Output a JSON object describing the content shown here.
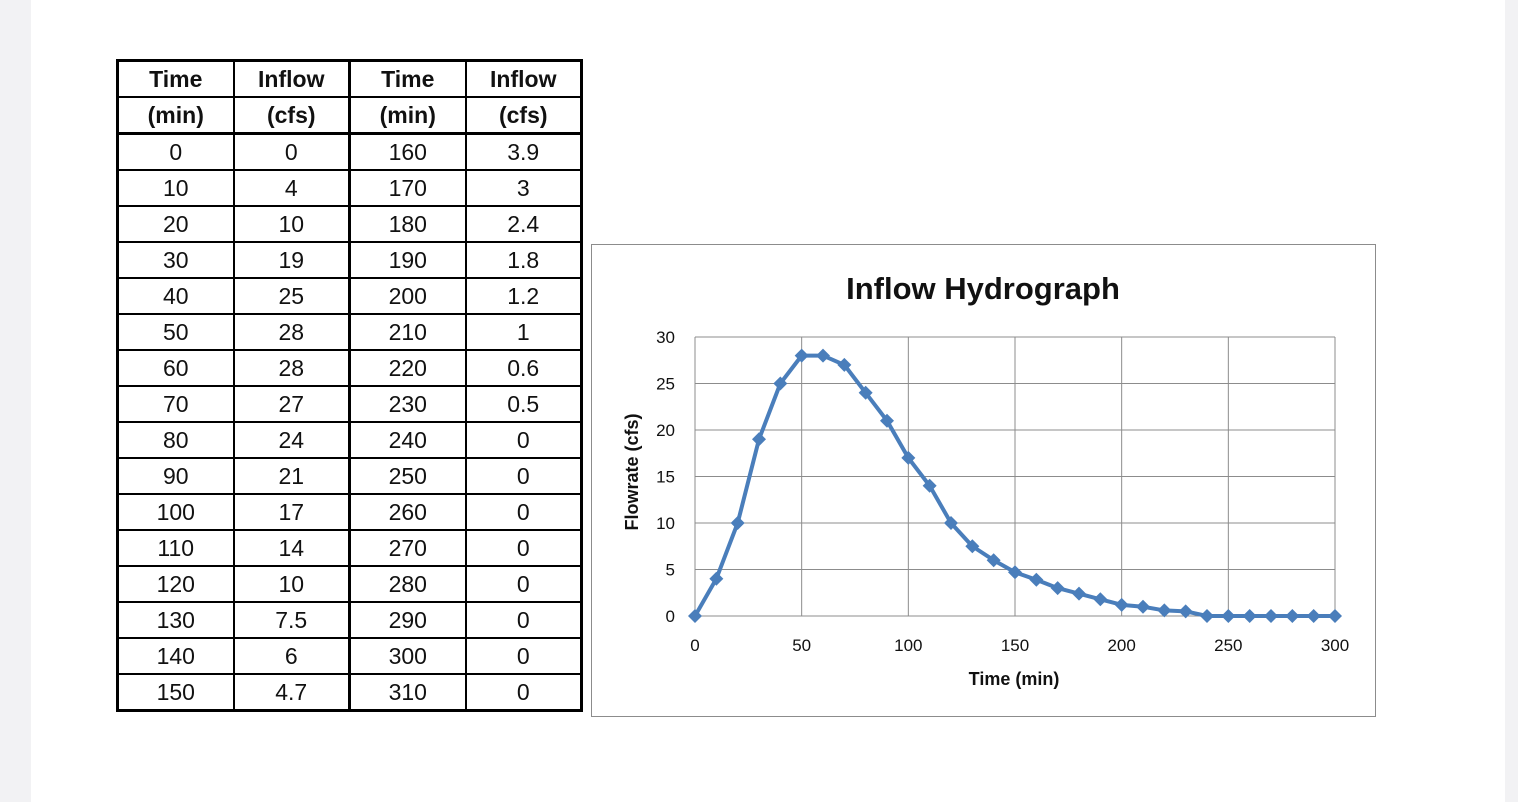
{
  "table": {
    "headers_row1": [
      "Time",
      "Inflow",
      "Time",
      "Inflow"
    ],
    "headers_row2": [
      "(min)",
      "(cfs)",
      "(min)",
      "(cfs)"
    ],
    "rows": [
      [
        "0",
        "0",
        "160",
        "3.9"
      ],
      [
        "10",
        "4",
        "170",
        "3"
      ],
      [
        "20",
        "10",
        "180",
        "2.4"
      ],
      [
        "30",
        "19",
        "190",
        "1.8"
      ],
      [
        "40",
        "25",
        "200",
        "1.2"
      ],
      [
        "50",
        "28",
        "210",
        "1"
      ],
      [
        "60",
        "28",
        "220",
        "0.6"
      ],
      [
        "70",
        "27",
        "230",
        "0.5"
      ],
      [
        "80",
        "24",
        "240",
        "0"
      ],
      [
        "90",
        "21",
        "250",
        "0"
      ],
      [
        "100",
        "17",
        "260",
        "0"
      ],
      [
        "110",
        "14",
        "270",
        "0"
      ],
      [
        "120",
        "10",
        "280",
        "0"
      ],
      [
        "130",
        "7.5",
        "290",
        "0"
      ],
      [
        "140",
        "6",
        "300",
        "0"
      ],
      [
        "150",
        "4.7",
        "310",
        "0"
      ]
    ]
  },
  "chart_data": {
    "type": "line",
    "title": "Inflow Hydrograph",
    "xlabel": "Time (min)",
    "ylabel": "Flowrate (cfs)",
    "xlim": [
      0,
      300
    ],
    "ylim": [
      0,
      30
    ],
    "xticks": [
      0,
      50,
      100,
      150,
      200,
      250,
      300
    ],
    "yticks": [
      0,
      5,
      10,
      15,
      20,
      25,
      30
    ],
    "grid": true,
    "marker": "diamond",
    "color": "#4a7ebb",
    "x": [
      0,
      10,
      20,
      30,
      40,
      50,
      60,
      70,
      80,
      90,
      100,
      110,
      120,
      130,
      140,
      150,
      160,
      170,
      180,
      190,
      200,
      210,
      220,
      230,
      240,
      250,
      260,
      270,
      280,
      290,
      300
    ],
    "y": [
      0,
      4,
      10,
      19,
      25,
      28,
      28,
      27,
      24,
      21,
      17,
      14,
      10,
      7.5,
      6,
      4.7,
      3.9,
      3,
      2.4,
      1.8,
      1.2,
      1,
      0.6,
      0.5,
      0,
      0,
      0,
      0,
      0,
      0,
      0
    ]
  }
}
